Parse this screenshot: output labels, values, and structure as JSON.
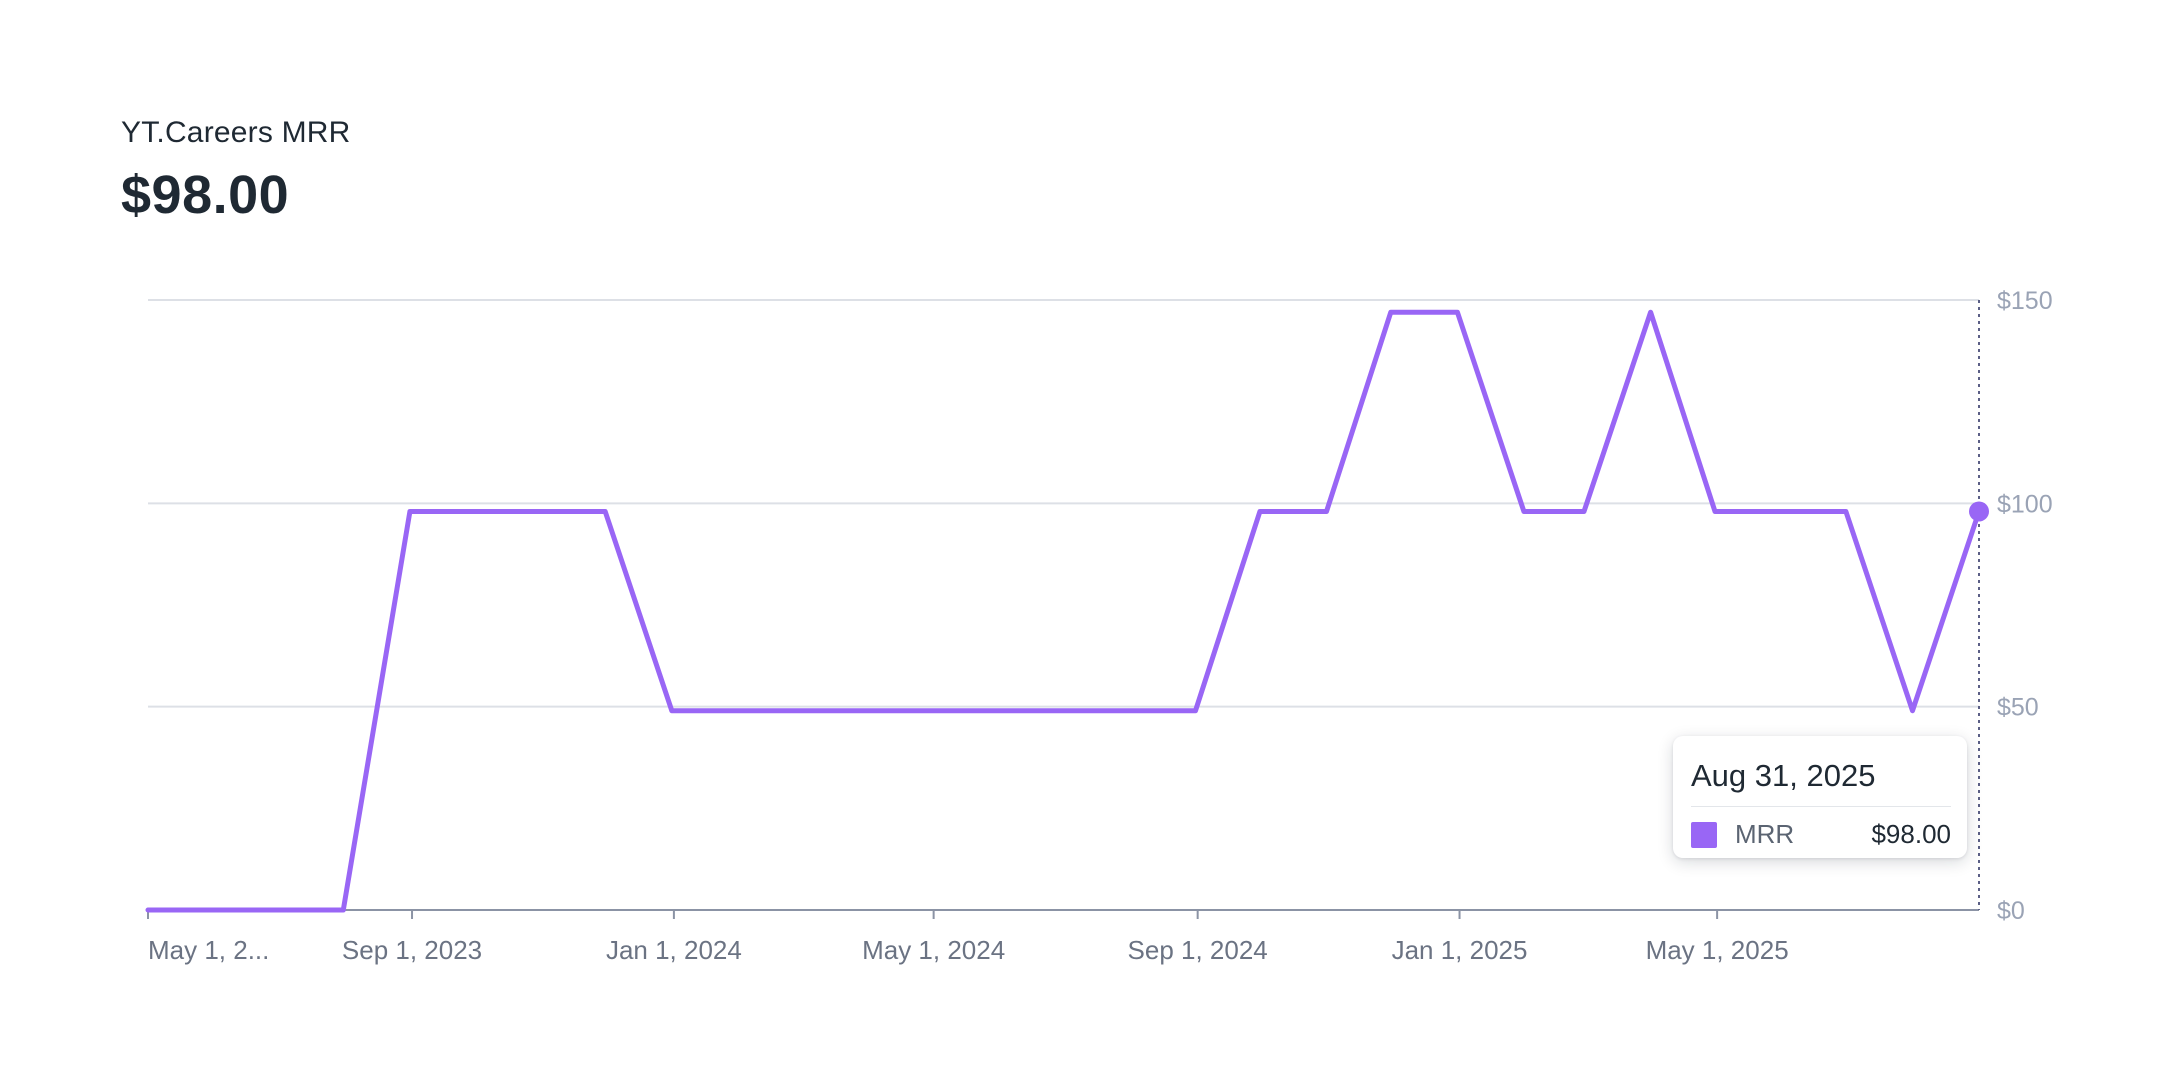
{
  "header": {
    "title": "YT.Careers MRR",
    "value": "$98.00"
  },
  "tooltip": {
    "date": "Aug 31, 2025",
    "series_label": "MRR",
    "value": "$98.00"
  },
  "colors": {
    "series": "#9966f5",
    "grid": "#dde0e6",
    "axis": "#8b93a5",
    "tick_label": "#6b7383",
    "y_tick_label": "#9aa3b5",
    "crosshair": "#5b5f86"
  },
  "chart_data": {
    "type": "line",
    "title": "YT.Careers MRR",
    "xlabel": "",
    "ylabel": "",
    "x_range": [
      "2023-05-01",
      "2025-08-31"
    ],
    "ylim": [
      0,
      150
    ],
    "grid": true,
    "y_axis_position": "right",
    "x_ticks": [
      {
        "date": "2023-05-01",
        "label": "May 1, 2..."
      },
      {
        "date": "2023-09-01",
        "label": "Sep 1, 2023"
      },
      {
        "date": "2024-01-01",
        "label": "Jan 1, 2024"
      },
      {
        "date": "2024-05-01",
        "label": "May 1, 2024"
      },
      {
        "date": "2024-09-01",
        "label": "Sep 1, 2024"
      },
      {
        "date": "2025-01-01",
        "label": "Jan 1, 2025"
      },
      {
        "date": "2025-05-01",
        "label": "May 1, 2025"
      }
    ],
    "y_ticks": [
      {
        "value": 0,
        "label": "$0"
      },
      {
        "value": 50,
        "label": "$50"
      },
      {
        "value": 100,
        "label": "$100"
      },
      {
        "value": 150,
        "label": "$150"
      }
    ],
    "series": [
      {
        "name": "MRR",
        "x": [
          "2023-05-01",
          "2023-07-31",
          "2023-08-31",
          "2023-10-31",
          "2023-11-30",
          "2023-12-31",
          "2024-01-31",
          "2024-02-29",
          "2024-03-31",
          "2024-04-30",
          "2024-05-31",
          "2024-06-30",
          "2024-07-31",
          "2024-08-31",
          "2024-09-30",
          "2024-10-31",
          "2024-11-30",
          "2024-12-31",
          "2025-01-31",
          "2025-02-28",
          "2025-03-31",
          "2025-04-30",
          "2025-05-31",
          "2025-06-30",
          "2025-07-31",
          "2025-08-31"
        ],
        "values": [
          0,
          0,
          98,
          98,
          98,
          49,
          49,
          49,
          49,
          49,
          49,
          49,
          49,
          49,
          98,
          98,
          147,
          147,
          98,
          98,
          147,
          98,
          98,
          98,
          49,
          98
        ]
      }
    ],
    "highlight": {
      "date": "2025-08-31",
      "value": 98
    }
  }
}
